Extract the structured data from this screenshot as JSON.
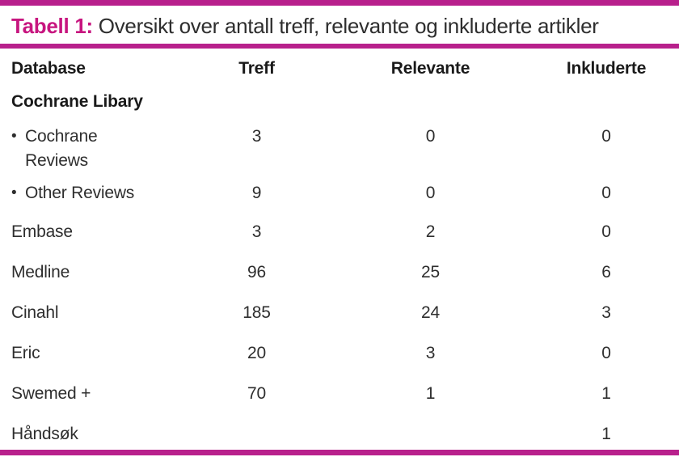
{
  "title": {
    "label": "Tabell 1:",
    "text": "Oversikt over antall treff, relevante og inkluderte artikler"
  },
  "colors": {
    "accent_magenta": "#b8208c",
    "title_magenta": "#c7157f",
    "text": "#2e2e2e",
    "header_text": "#1a1a1a"
  },
  "table": {
    "columns": [
      "Database",
      "Treff",
      "Relevante",
      "Inkluderte"
    ],
    "bullet_glyph": "•",
    "rows": [
      {
        "database": "Cochrane Libary",
        "treff": "",
        "relevante": "",
        "inkluderte": "",
        "bold": true,
        "bullet": false,
        "wrap": false
      },
      {
        "database": "Cochrane Reviews",
        "treff": "3",
        "relevante": "0",
        "inkluderte": "0",
        "bold": false,
        "bullet": true,
        "wrap": true
      },
      {
        "database": "Other Reviews",
        "treff": "9",
        "relevante": "0",
        "inkluderte": "0",
        "bold": false,
        "bullet": true,
        "wrap": false
      },
      {
        "database": "Embase",
        "treff": "3",
        "relevante": "2",
        "inkluderte": "0",
        "bold": false,
        "bullet": false,
        "wrap": false
      },
      {
        "database": "Medline",
        "treff": "96",
        "relevante": "25",
        "inkluderte": "6",
        "bold": false,
        "bullet": false,
        "wrap": false
      },
      {
        "database": "Cinahl",
        "treff": "185",
        "relevante": "24",
        "inkluderte": "3",
        "bold": false,
        "bullet": false,
        "wrap": false
      },
      {
        "database": "Eric",
        "treff": "20",
        "relevante": "3",
        "inkluderte": "0",
        "bold": false,
        "bullet": false,
        "wrap": false
      },
      {
        "database": "Swemed +",
        "treff": "70",
        "relevante": "1",
        "inkluderte": "1",
        "bold": false,
        "bullet": false,
        "wrap": false
      },
      {
        "database": "Håndsøk",
        "treff": "",
        "relevante": "",
        "inkluderte": "1",
        "bold": false,
        "bullet": false,
        "wrap": false
      }
    ]
  }
}
